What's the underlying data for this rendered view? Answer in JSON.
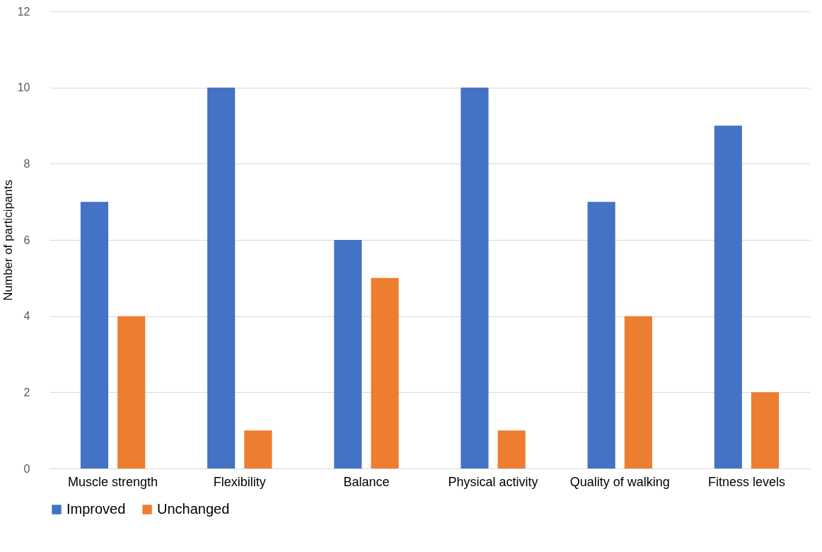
{
  "chart_data": {
    "type": "bar",
    "ylabel": "Number of participants",
    "categories": [
      "Muscle strength",
      "Flexibility",
      "Balance",
      "Physical activity",
      "Quality of walking",
      "Fitness levels"
    ],
    "series": [
      {
        "name": "Improved",
        "color": "#4472c4",
        "values": [
          7,
          10,
          6,
          10,
          7,
          9
        ]
      },
      {
        "name": "Unchanged",
        "color": "#ed7d31",
        "values": [
          4,
          1,
          5,
          1,
          4,
          2
        ]
      }
    ],
    "ylim": [
      0,
      12
    ],
    "yticks": [
      0,
      2,
      4,
      6,
      8,
      10,
      12
    ],
    "grid": "y",
    "legend": "bottom"
  }
}
